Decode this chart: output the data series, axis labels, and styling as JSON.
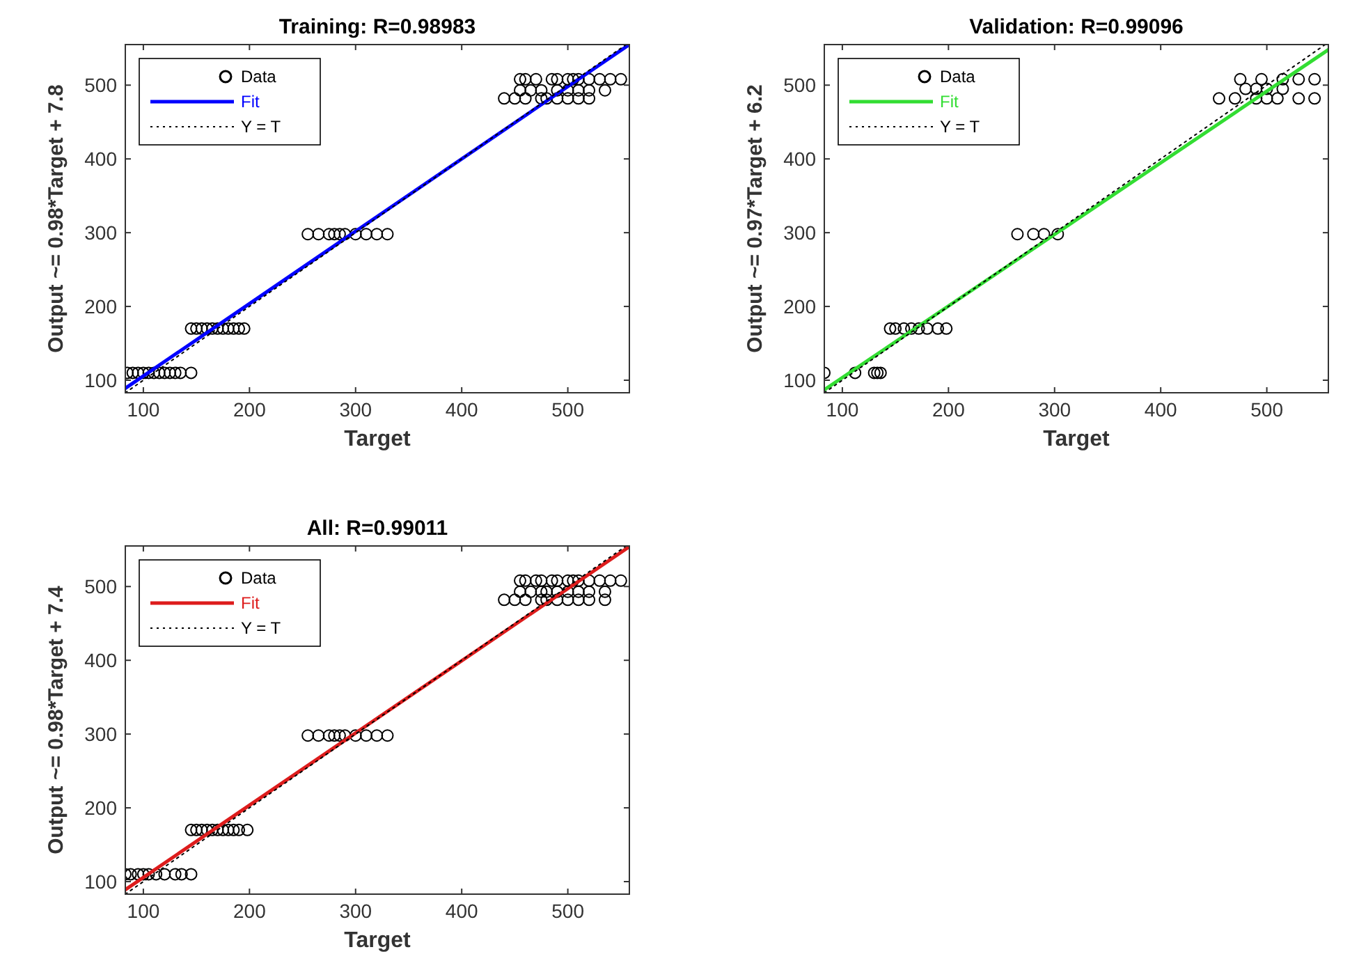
{
  "chart_data": [
    {
      "type": "scatter",
      "title": "Training: R=0.98983",
      "xlabel": "Target",
      "ylabel": "Output ~= 0.98*Target + 7.8",
      "xlim": [
        83,
        558
      ],
      "ylim": [
        83,
        555
      ],
      "xticks": [
        100,
        200,
        300,
        400,
        500
      ],
      "yticks": [
        100,
        200,
        300,
        400,
        500
      ],
      "grid": false,
      "legend": "top left",
      "series": [
        {
          "name": "Data",
          "type": "scatter",
          "marker": "circle",
          "color": "#000000",
          "x": [
            85,
            90,
            95,
            100,
            105,
            110,
            115,
            120,
            125,
            130,
            135,
            145,
            145,
            150,
            155,
            160,
            165,
            170,
            175,
            180,
            185,
            190,
            195,
            255,
            265,
            275,
            280,
            285,
            290,
            300,
            310,
            320,
            330,
            455,
            460,
            470,
            485,
            490,
            500,
            505,
            510,
            520,
            530,
            540,
            550,
            455,
            465,
            475,
            490,
            500,
            510,
            520,
            535,
            440,
            450,
            460,
            475,
            480,
            490,
            500,
            510,
            520
          ],
          "values": [
            110,
            110,
            110,
            110,
            110,
            110,
            110,
            110,
            110,
            110,
            110,
            110,
            170,
            170,
            170,
            170,
            170,
            170,
            170,
            170,
            170,
            170,
            170,
            298,
            298,
            298,
            298,
            298,
            298,
            298,
            298,
            298,
            298,
            508,
            508,
            508,
            508,
            508,
            508,
            508,
            508,
            508,
            508,
            508,
            508,
            493,
            493,
            493,
            493,
            493,
            493,
            493,
            493,
            482,
            482,
            482,
            482,
            482,
            482,
            482,
            482,
            482
          ]
        },
        {
          "name": "Fit",
          "type": "line",
          "marker": "none",
          "line_style": "solid",
          "color": "#0000ff",
          "x": [
            83,
            558
          ],
          "values": [
            89,
            555
          ]
        },
        {
          "name": "Y = T",
          "type": "line",
          "marker": "none",
          "line_style": "dotted",
          "color": "#000000",
          "x": [
            83,
            555
          ],
          "values": [
            83,
            555
          ]
        }
      ]
    },
    {
      "type": "scatter",
      "title": "Validation: R=0.99096",
      "xlabel": "Target",
      "ylabel": "Output ~= 0.97*Target + 6.2",
      "xlim": [
        83,
        558
      ],
      "ylim": [
        83,
        555
      ],
      "xticks": [
        100,
        200,
        300,
        400,
        500
      ],
      "yticks": [
        100,
        200,
        300,
        400,
        500
      ],
      "grid": false,
      "legend": "top left",
      "series": [
        {
          "name": "Data",
          "type": "scatter",
          "marker": "circle",
          "color": "#000000",
          "x": [
            83,
            112,
            130,
            133,
            136,
            145,
            150,
            158,
            165,
            172,
            180,
            190,
            198,
            265,
            280,
            290,
            303,
            475,
            495,
            515,
            530,
            545,
            480,
            490,
            500,
            515,
            455,
            470,
            490,
            500,
            510,
            530,
            545
          ],
          "values": [
            110,
            110,
            110,
            110,
            110,
            170,
            170,
            170,
            170,
            170,
            170,
            170,
            170,
            298,
            298,
            298,
            298,
            508,
            508,
            508,
            508,
            508,
            495,
            495,
            495,
            495,
            482,
            482,
            482,
            482,
            482,
            482,
            482
          ]
        },
        {
          "name": "Fit",
          "type": "line",
          "marker": "none",
          "line_style": "solid",
          "color": "#33dd33",
          "x": [
            83,
            558
          ],
          "values": [
            87,
            548
          ]
        },
        {
          "name": "Y = T",
          "type": "line",
          "marker": "none",
          "line_style": "dotted",
          "color": "#000000",
          "x": [
            83,
            555
          ],
          "values": [
            83,
            555
          ]
        }
      ]
    },
    {
      "type": "scatter",
      "title": "All: R=0.99011",
      "xlabel": "Target",
      "ylabel": "Output ~= 0.98*Target + 7.4",
      "xlim": [
        83,
        558
      ],
      "ylim": [
        83,
        555
      ],
      "xticks": [
        100,
        200,
        300,
        400,
        500
      ],
      "yticks": [
        100,
        200,
        300,
        400,
        500
      ],
      "grid": false,
      "legend": "top left",
      "series": [
        {
          "name": "Data",
          "type": "scatter",
          "marker": "circle",
          "color": "#000000",
          "x": [
            83,
            88,
            95,
            100,
            105,
            112,
            120,
            130,
            136,
            145,
            145,
            150,
            155,
            160,
            165,
            170,
            175,
            180,
            185,
            190,
            198,
            255,
            265,
            275,
            280,
            285,
            290,
            300,
            310,
            320,
            330,
            455,
            460,
            470,
            475,
            485,
            490,
            500,
            505,
            510,
            520,
            530,
            540,
            550,
            455,
            465,
            475,
            480,
            490,
            500,
            510,
            520,
            535,
            440,
            450,
            460,
            475,
            480,
            490,
            500,
            510,
            520,
            535
          ],
          "values": [
            110,
            110,
            110,
            110,
            110,
            110,
            110,
            110,
            110,
            110,
            170,
            170,
            170,
            170,
            170,
            170,
            170,
            170,
            170,
            170,
            170,
            298,
            298,
            298,
            298,
            298,
            298,
            298,
            298,
            298,
            298,
            508,
            508,
            508,
            508,
            508,
            508,
            508,
            508,
            508,
            508,
            508,
            508,
            508,
            493,
            493,
            493,
            493,
            493,
            493,
            493,
            493,
            493,
            482,
            482,
            482,
            482,
            482,
            482,
            482,
            482,
            482,
            482
          ]
        },
        {
          "name": "Fit",
          "type": "line",
          "marker": "none",
          "line_style": "solid",
          "color": "#dd1c1c",
          "x": [
            83,
            558
          ],
          "values": [
            89,
            554
          ]
        },
        {
          "name": "Y = T",
          "type": "line",
          "marker": "none",
          "line_style": "dotted",
          "color": "#000000",
          "x": [
            83,
            555
          ],
          "values": [
            83,
            555
          ]
        }
      ]
    }
  ]
}
